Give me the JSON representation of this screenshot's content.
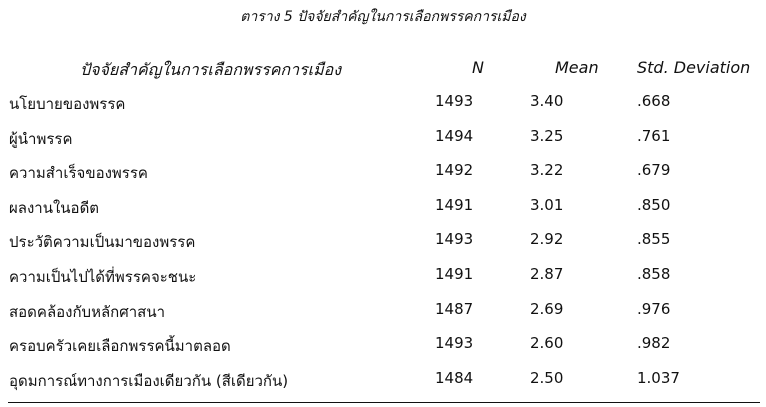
{
  "title": "ตาราง 5 ปัจจัยสำคัญในการเลือกพรรคการเมือง",
  "table": {
    "headers": [
      "ปัจจัยสำคัญในการเลือกพรรคการเมือง",
      "N",
      "Mean",
      "Std. Deviation"
    ],
    "rows": [
      [
        "นโยบายของพรรค",
        "1493",
        "3.40",
        ".668"
      ],
      [
        "ผู้นำพรรค",
        "1494",
        "3.25",
        ".761"
      ],
      [
        "ความสำเร็จของพรรค",
        "1492",
        "3.22",
        ".679"
      ],
      [
        "ผลงานในอดีต",
        "1491",
        "3.01",
        ".850"
      ],
      [
        "ประวัติความเป็นมาของพรรค",
        "1493",
        "2.92",
        ".855"
      ],
      [
        "ความเป็นไปได้ที่พรรคจะชนะ",
        "1491",
        "2.87",
        ".858"
      ],
      [
        "สอดคล้องกับหลักศาสนา",
        "1487",
        "2.69",
        ".976"
      ],
      [
        "ครอบครัวเคยเลือกพรรคนี้มาตลอด",
        "1493",
        "2.60",
        ".982"
      ],
      [
        "อุดมการณ์ทางการเมืองเดียวกัน (สีเดียวกัน)",
        "1484",
        "2.50",
        "1.037"
      ]
    ]
  }
}
